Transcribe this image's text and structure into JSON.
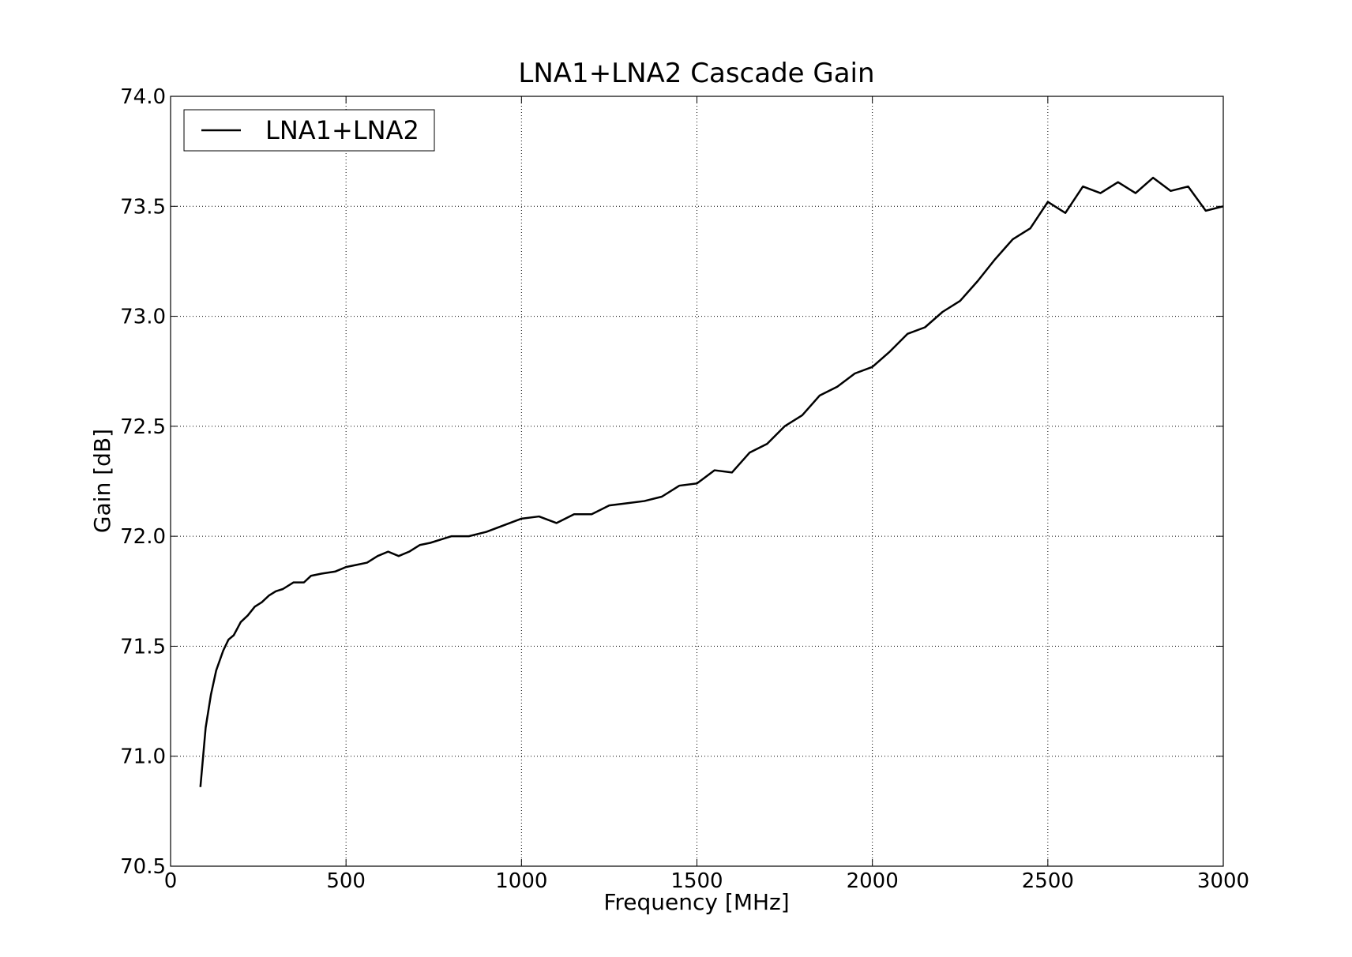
{
  "chart_data": {
    "type": "line",
    "title": "LNA1+LNA2 Cascade Gain",
    "x_label": "Frequency [MHz]",
    "y_label": "Gain [dB]",
    "x": [
      85,
      100,
      115,
      130,
      150,
      165,
      180,
      200,
      220,
      240,
      260,
      280,
      300,
      320,
      350,
      380,
      400,
      430,
      470,
      500,
      530,
      560,
      590,
      620,
      650,
      680,
      710,
      740,
      780,
      800,
      850,
      900,
      950,
      1000,
      1050,
      1100,
      1150,
      1200,
      1250,
      1300,
      1350,
      1400,
      1450,
      1500,
      1550,
      1600,
      1650,
      1700,
      1750,
      1800,
      1850,
      1900,
      1950,
      2000,
      2050,
      2100,
      2150,
      2200,
      2250,
      2300,
      2350,
      2400,
      2450,
      2500,
      2550,
      2600,
      2650,
      2700,
      2750,
      2800,
      2850,
      2900,
      2950,
      3000
    ],
    "series": [
      {
        "name": "LNA1+LNA2",
        "color": "#000000",
        "values": [
          70.86,
          71.13,
          71.28,
          71.39,
          71.48,
          71.53,
          71.55,
          71.61,
          71.64,
          71.68,
          71.7,
          71.73,
          71.75,
          71.76,
          71.79,
          71.79,
          71.82,
          71.83,
          71.84,
          71.86,
          71.87,
          71.88,
          71.91,
          71.93,
          71.91,
          71.93,
          71.96,
          71.97,
          71.99,
          72.0,
          72.0,
          72.02,
          72.05,
          72.08,
          72.09,
          72.06,
          72.1,
          72.1,
          72.14,
          72.15,
          72.16,
          72.18,
          72.23,
          72.24,
          72.3,
          72.29,
          72.38,
          72.42,
          72.5,
          72.55,
          72.64,
          72.68,
          72.74,
          72.77,
          72.84,
          72.92,
          72.95,
          73.02,
          73.07,
          73.16,
          73.26,
          73.35,
          73.4,
          73.52,
          73.47,
          73.59,
          73.56,
          73.61,
          73.56,
          73.63,
          73.57,
          73.59,
          73.48,
          73.5
        ]
      }
    ],
    "xlim": [
      0,
      3000
    ],
    "xticks": [
      0,
      500,
      1000,
      1500,
      2000,
      2500,
      3000
    ],
    "ylim": [
      70.5,
      74.0
    ],
    "yticks": [
      70.5,
      {
        "value": 71,
        "label": "71.0"
      },
      71.5,
      {
        "value": 72,
        "label": "72.0"
      },
      72.5,
      {
        "value": 73,
        "label": "73.0"
      },
      73.5,
      {
        "value": 74,
        "label": "74.0"
      }
    ],
    "grid": true,
    "legend": "upper left"
  }
}
